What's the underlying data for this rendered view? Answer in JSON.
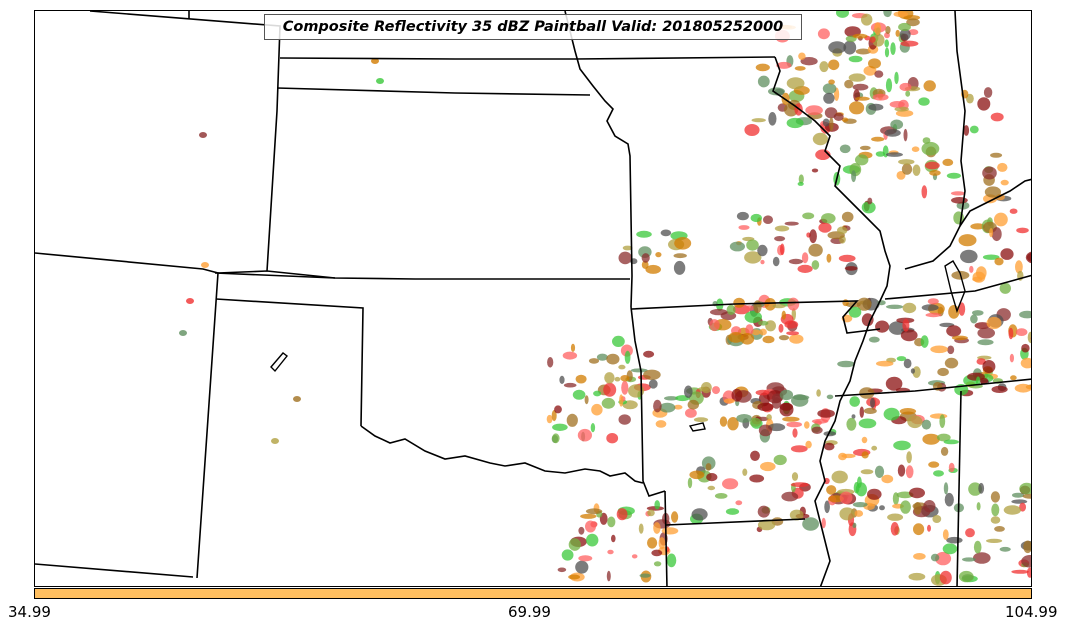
{
  "title": "Composite Reflectivity 35 dBZ Paintball Valid: 201805252000",
  "colorbar": {
    "color": "#ffbf60",
    "ticks": [
      "34.99",
      "69.99",
      "104.99"
    ]
  },
  "member_colors": [
    "#8b2e2e",
    "#ff9f33",
    "#f03030",
    "#d27c00",
    "#39c839",
    "#5f8f5f",
    "#a07020",
    "#b0a040",
    "#505050",
    "#8b1010",
    "#ff6060",
    "#70b040"
  ],
  "map": {
    "background": "#ffffff",
    "boundary_color": "#000000"
  }
}
